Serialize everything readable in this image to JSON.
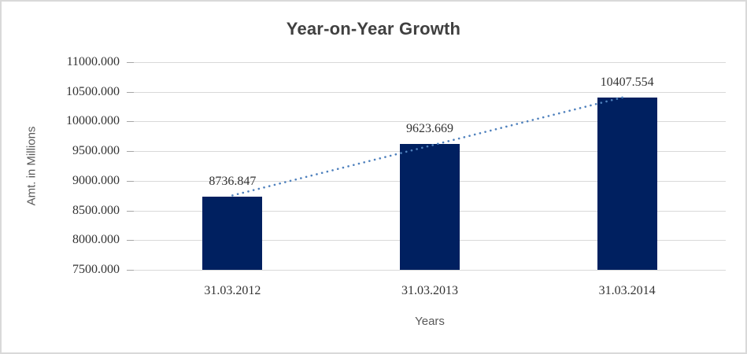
{
  "window": {
    "background": "#ffffff",
    "border_color": "#d9d9d9"
  },
  "chart_data": {
    "type": "bar",
    "title": "Year-on-Year Growth",
    "xlabel": "Years",
    "ylabel": "Amt. in Millions",
    "categories": [
      "31.03.2012",
      "31.03.2013",
      "31.03.2014"
    ],
    "values": [
      8736.847,
      9623.669,
      10407.554
    ],
    "value_labels": [
      "8736.847",
      "9623.669",
      "10407.554"
    ],
    "ylim": [
      7500,
      11000
    ],
    "yticks": [
      {
        "value": 7500,
        "label": "7500.000"
      },
      {
        "value": 8000,
        "label": "8000.000"
      },
      {
        "value": 8500,
        "label": "8500.000"
      },
      {
        "value": 9000,
        "label": "9000.000"
      },
      {
        "value": 9500,
        "label": "9500.000"
      },
      {
        "value": 10000,
        "label": "10000.000"
      },
      {
        "value": 10500,
        "label": "10500.000"
      },
      {
        "value": 11000,
        "label": "11000.000"
      }
    ],
    "grid": true,
    "legend": "none",
    "trendline": {
      "type": "linear",
      "style": "dotted"
    },
    "colors": {
      "bar": "#002060",
      "trendline": "#4f81bd",
      "gridline": "#d9d9d9",
      "tick_mark": "#a6a6a6",
      "title_text": "#404040",
      "tick_text": "#333333",
      "axis_title_text": "#595959"
    }
  }
}
